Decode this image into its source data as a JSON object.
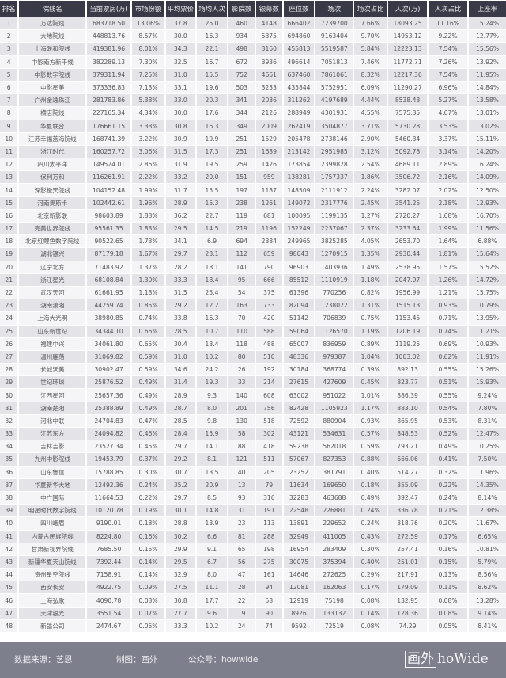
{
  "colors": {
    "header_bg": "#383a48",
    "odd_row": "#e3e3e8",
    "even_row": "#f5f5f7",
    "footer_bg": "#7e7f8c"
  },
  "table": {
    "columns": [
      "排名",
      "院线名",
      "当前票房(万)",
      "市场份额",
      "平均票价",
      "场均人次",
      "影院数",
      "银幕数",
      "座位数",
      "场次",
      "场次占比",
      "人次(万)",
      "人次占比",
      "上座率"
    ],
    "rows": [
      [
        "1",
        "万达院线",
        "683718.50",
        "13.06%",
        "37.8",
        "25.0",
        "460",
        "4148",
        "666402",
        "7239700",
        "7.66%",
        "18093.25",
        "11.16%",
        "15.24%"
      ],
      [
        "2",
        "大地院线",
        "448813.76",
        "8.57%",
        "30.0",
        "16.3",
        "934",
        "5375",
        "694860",
        "9163404",
        "9.70%",
        "14953.12",
        "9.22%",
        "12.77%"
      ],
      [
        "3",
        "上海联和院线",
        "419381.96",
        "8.01%",
        "34.3",
        "22.1",
        "498",
        "3160",
        "455813",
        "5519587",
        "5.84%",
        "12223.13",
        "7.54%",
        "15.56%"
      ],
      [
        "4",
        "中影南方新干线",
        "382289.13",
        "7.30%",
        "32.5",
        "16.7",
        "672",
        "3936",
        "496614",
        "7051813",
        "7.46%",
        "11772.71",
        "7.26%",
        "13.92%"
      ],
      [
        "5",
        "中影数字院线",
        "379311.94",
        "7.25%",
        "31.0",
        "15.5",
        "752",
        "4661",
        "637460",
        "7861061",
        "8.32%",
        "12217.36",
        "7.54%",
        "11.95%"
      ],
      [
        "6",
        "中影星美",
        "373336.83",
        "7.13%",
        "33.1",
        "19.6",
        "503",
        "3233",
        "435844",
        "5752951",
        "6.09%",
        "11290.27",
        "6.96%",
        "14.84%"
      ],
      [
        "7",
        "广州金逸珠江",
        "281783.86",
        "5.38%",
        "33.0",
        "20.3",
        "341",
        "2036",
        "311262",
        "4197689",
        "4.44%",
        "8538.48",
        "5.27%",
        "13.58%"
      ],
      [
        "8",
        "横店院线",
        "227165.34",
        "4.34%",
        "30.0",
        "17.6",
        "344",
        "2126",
        "288949",
        "4301931",
        "4.55%",
        "7575.35",
        "4.67%",
        "13.01%"
      ],
      [
        "9",
        "华夏联合",
        "176661.15",
        "3.38%",
        "30.8",
        "16.3",
        "349",
        "2009",
        "262419",
        "3504877",
        "3.71%",
        "5730.28",
        "3.53%",
        "13.02%"
      ],
      [
        "10",
        "江苏幸福蓝海院线",
        "168741.39",
        "3.22%",
        "30.9",
        "19.9",
        "251",
        "1529",
        "205478",
        "2738146",
        "2.90%",
        "5460.34",
        "3.37%",
        "15.11%"
      ],
      [
        "11",
        "浙江时代",
        "160257.72",
        "3.06%",
        "31.5",
        "17.3",
        "251",
        "1689",
        "213142",
        "2951985",
        "3.12%",
        "5092.78",
        "3.14%",
        "14.20%"
      ],
      [
        "12",
        "四川太平洋",
        "149524.01",
        "2.86%",
        "31.9",
        "19.5",
        "259",
        "1426",
        "173854",
        "2399828",
        "2.54%",
        "4689.11",
        "2.89%",
        "16.24%"
      ],
      [
        "13",
        "保利万和",
        "116261.91",
        "2.22%",
        "33.2",
        "20.0",
        "151",
        "959",
        "138281",
        "1757337",
        "1.86%",
        "3506.72",
        "2.16%",
        "14.09%"
      ],
      [
        "14",
        "深影橙天院线",
        "104152.48",
        "1.99%",
        "31.7",
        "15.5",
        "197",
        "1187",
        "148509",
        "2111912",
        "2.24%",
        "3282.07",
        "2.02%",
        "12.50%"
      ],
      [
        "15",
        "河南奥斯卡",
        "102442.61",
        "1.96%",
        "28.9",
        "15.3",
        "238",
        "1261",
        "149072",
        "2317776",
        "2.45%",
        "3541.25",
        "2.18%",
        "12.93%"
      ],
      [
        "16",
        "北京新影联",
        "98603.89",
        "1.88%",
        "36.2",
        "22.7",
        "119",
        "681",
        "100095",
        "1199135",
        "1.27%",
        "2720.27",
        "1.68%",
        "16.70%"
      ],
      [
        "17",
        "完美世界院线",
        "95561.35",
        "1.83%",
        "29.5",
        "14.5",
        "219",
        "1196",
        "152249",
        "2237067",
        "2.37%",
        "3233.64",
        "1.99%",
        "11.56%"
      ],
      [
        "18",
        "北京红鲤鱼数字院线",
        "90522.65",
        "1.73%",
        "34.1",
        "6.9",
        "694",
        "2384",
        "249965",
        "3825285",
        "4.05%",
        "2653.70",
        "1.64%",
        "6.88%"
      ],
      [
        "19",
        "湖北银兴",
        "87179.18",
        "1.67%",
        "29.7",
        "23.1",
        "112",
        "659",
        "98043",
        "1270915",
        "1.35%",
        "2930.44",
        "1.81%",
        "15.64%"
      ],
      [
        "20",
        "辽宁北方",
        "71483.92",
        "1.37%",
        "28.2",
        "18.1",
        "141",
        "790",
        "96903",
        "1403936",
        "1.49%",
        "2538.95",
        "1.57%",
        "15.52%"
      ],
      [
        "21",
        "浙江星光",
        "68108.84",
        "1.30%",
        "33.3",
        "18.4",
        "95",
        "666",
        "85512",
        "1110919",
        "1.18%",
        "2047.97",
        "1.26%",
        "14.72%"
      ],
      [
        "22",
        "武汉天河",
        "61661.95",
        "1.18%",
        "31.5",
        "25.4",
        "54",
        "375",
        "61396",
        "770256",
        "0.82%",
        "1956.99",
        "1.21%",
        "15.75%"
      ],
      [
        "23",
        "湖南潇湘",
        "44259.74",
        "0.85%",
        "29.2",
        "12.2",
        "163",
        "733",
        "82094",
        "1238022",
        "1.31%",
        "1515.13",
        "0.93%",
        "10.79%"
      ],
      [
        "24",
        "上海大光明",
        "38980.85",
        "0.74%",
        "33.8",
        "16.3",
        "70",
        "420",
        "51142",
        "706839",
        "0.75%",
        "1153.45",
        "0.71%",
        "13.95%"
      ],
      [
        "25",
        "山东新世纪",
        "34344.10",
        "0.66%",
        "28.5",
        "10.7",
        "110",
        "588",
        "59064",
        "1126570",
        "1.19%",
        "1206.19",
        "0.74%",
        "11.21%"
      ],
      [
        "26",
        "福建中兴",
        "34061.80",
        "0.65%",
        "30.4",
        "13.4",
        "118",
        "488",
        "65007",
        "836959",
        "0.89%",
        "1119.25",
        "0.69%",
        "10.93%"
      ],
      [
        "27",
        "温州雁荡",
        "31069.82",
        "0.59%",
        "31.0",
        "10.2",
        "80",
        "510",
        "48336",
        "979387",
        "1.04%",
        "1003.02",
        "0.62%",
        "11.91%"
      ],
      [
        "28",
        "长城沃美",
        "30902.47",
        "0.59%",
        "34.6",
        "24.2",
        "26",
        "192",
        "30184",
        "368774",
        "0.39%",
        "892.13",
        "0.55%",
        "15.26%"
      ],
      [
        "29",
        "世纪环球",
        "25876.52",
        "0.49%",
        "31.4",
        "19.3",
        "33",
        "214",
        "27615",
        "427609",
        "0.45%",
        "823.77",
        "0.51%",
        "15.93%"
      ],
      [
        "30",
        "江西星河",
        "25657.36",
        "0.49%",
        "28.9",
        "9.3",
        "140",
        "608",
        "63002",
        "951022",
        "1.01%",
        "886.39",
        "0.55%",
        "9.24%"
      ],
      [
        "31",
        "湖南楚湘",
        "25388.89",
        "0.49%",
        "28.7",
        "8.0",
        "201",
        "756",
        "82428",
        "1105923",
        "1.17%",
        "883.10",
        "0.54%",
        "7.80%"
      ],
      [
        "32",
        "河北中联",
        "24704.83",
        "0.47%",
        "28.5",
        "9.8",
        "130",
        "518",
        "72592",
        "880904",
        "0.93%",
        "865.95",
        "0.53%",
        "8.31%"
      ],
      [
        "33",
        "江苏东方",
        "24094.82",
        "0.46%",
        "28.4",
        "15.9",
        "58",
        "302",
        "43121",
        "534631",
        "0.57%",
        "848.53",
        "0.52%",
        "12.47%"
      ],
      [
        "34",
        "吉林吉影",
        "23527.34",
        "0.45%",
        "29.7",
        "14.1",
        "88",
        "418",
        "59238",
        "562018",
        "0.59%",
        "793.21",
        "0.49%",
        "10.25%"
      ],
      [
        "35",
        "九州中影院线",
        "19453.79",
        "0.37%",
        "29.2",
        "8.1",
        "121",
        "511",
        "57067",
        "827353",
        "0.88%",
        "666.06",
        "0.41%",
        "7.50%"
      ],
      [
        "36",
        "山东鲁信",
        "15788.85",
        "0.30%",
        "30.7",
        "13.5",
        "40",
        "205",
        "23252",
        "381791",
        "0.40%",
        "514.27",
        "0.32%",
        "11.96%"
      ],
      [
        "37",
        "华夏新华大地",
        "12492.36",
        "0.24%",
        "35.2",
        "20.9",
        "13",
        "79",
        "11634",
        "169650",
        "0.18%",
        "355.09",
        "0.22%",
        "14.35%"
      ],
      [
        "38",
        "中广国际",
        "11664.53",
        "0.22%",
        "29.7",
        "8.5",
        "93",
        "316",
        "32283",
        "463688",
        "0.49%",
        "392.47",
        "0.24%",
        "8.14%"
      ],
      [
        "39",
        "明星时代数字院线",
        "10120.78",
        "0.19%",
        "30.1",
        "14.8",
        "31",
        "191",
        "22548",
        "226881",
        "0.24%",
        "336.78",
        "0.21%",
        "12.38%"
      ],
      [
        "40",
        "四川峨眉",
        "9190.01",
        "0.18%",
        "28.8",
        "13.9",
        "23",
        "113",
        "13891",
        "229652",
        "0.24%",
        "318.76",
        "0.20%",
        "11.67%"
      ],
      [
        "41",
        "内蒙古民族院线",
        "8224.80",
        "0.16%",
        "30.2",
        "6.6",
        "81",
        "288",
        "32949",
        "411005",
        "0.43%",
        "272.59",
        "0.17%",
        "6.65%"
      ],
      [
        "42",
        "甘肃新视界院线",
        "7685.50",
        "0.15%",
        "29.9",
        "9.1",
        "65",
        "198",
        "16954",
        "283409",
        "0.30%",
        "257.41",
        "0.16%",
        "10.81%"
      ],
      [
        "43",
        "新疆华夏天山院线",
        "7392.44",
        "0.14%",
        "29.5",
        "6.7",
        "56",
        "275",
        "30075",
        "375394",
        "0.40%",
        "251.01",
        "0.15%",
        "5.79%"
      ],
      [
        "44",
        "贵州星空院线",
        "7158.91",
        "0.14%",
        "32.9",
        "8.0",
        "47",
        "161",
        "14646",
        "272625",
        "0.29%",
        "217.91",
        "0.13%",
        "8.56%"
      ],
      [
        "45",
        "西安长安",
        "4922.75",
        "0.09%",
        "27.5",
        "11.1",
        "28",
        "94",
        "12081",
        "162063",
        "0.17%",
        "179.09",
        "0.11%",
        "8.62%"
      ],
      [
        "46",
        "上海弘歌",
        "4090.78",
        "0.08%",
        "30.8",
        "17.7",
        "22",
        "58",
        "12919",
        "75198",
        "0.08%",
        "132.95",
        "0.08%",
        "13.28%"
      ],
      [
        "47",
        "天津银光",
        "3551.54",
        "0.07%",
        "27.7",
        "9.6",
        "19",
        "90",
        "8926",
        "133132",
        "0.14%",
        "128.36",
        "0.08%",
        "9.14%"
      ],
      [
        "48",
        "新疆公司",
        "2474.67",
        "0.05%",
        "33.3",
        "10.2",
        "24",
        "74",
        "9592",
        "72519",
        "0.08%",
        "74.29",
        "0.05%",
        "8.41%"
      ]
    ]
  },
  "footer": {
    "source": "数据来源：艺恩",
    "made_by": "制图：画外",
    "account": "公众号：howwide",
    "logo_cn": "画外",
    "logo_en": "hoWide"
  }
}
